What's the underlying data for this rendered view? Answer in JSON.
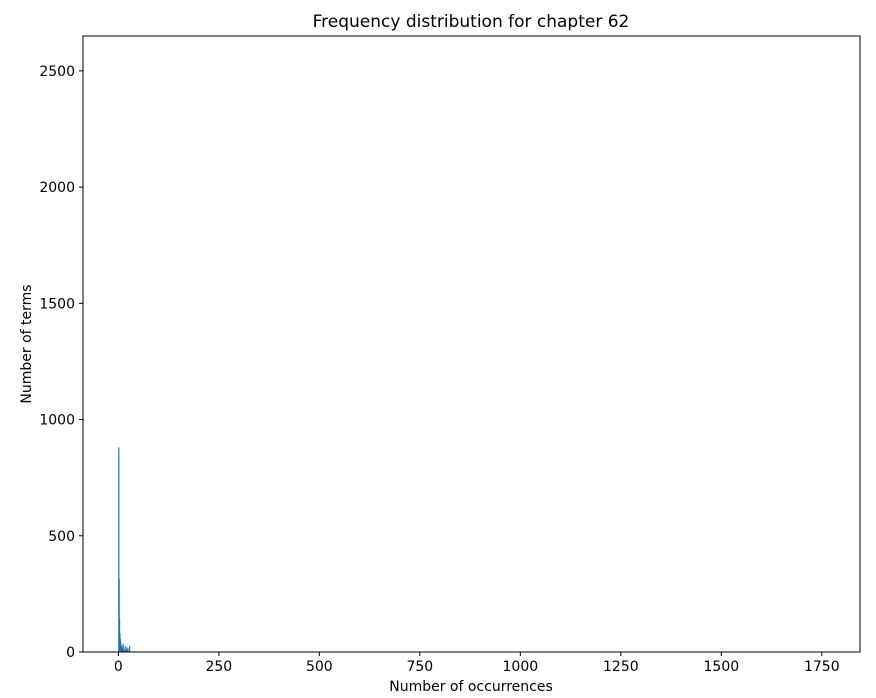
{
  "chart_data": {
    "type": "bar",
    "title": "Frequency distribution for chapter 62",
    "xlabel": "Number of occurrences",
    "ylabel": "Number of terms",
    "xlim": [
      -88,
      1845
    ],
    "ylim": [
      0,
      2650
    ],
    "xticks": [
      0,
      250,
      500,
      750,
      1000,
      1250,
      1500,
      1750
    ],
    "yticks": [
      0,
      500,
      1000,
      1500,
      2000,
      2500
    ],
    "grid": false,
    "bar_color": "#1f77b4",
    "series": [
      {
        "x": [
          1,
          2,
          3,
          4,
          5,
          6,
          7,
          8,
          9,
          10,
          11,
          12,
          13,
          14,
          15,
          16,
          17,
          18,
          19,
          20,
          21,
          22,
          23,
          24,
          25,
          26,
          27,
          28,
          29,
          30,
          35,
          40,
          45,
          50,
          60,
          75,
          100
        ],
        "values": [
          880,
          315,
          145,
          80,
          55,
          40,
          30,
          25,
          20,
          18,
          15,
          35,
          12,
          10,
          9,
          8,
          25,
          7,
          6,
          5,
          20,
          5,
          4,
          15,
          4,
          3,
          3,
          25,
          3,
          2,
          2,
          3,
          2,
          2,
          2,
          1,
          1
        ]
      }
    ]
  }
}
